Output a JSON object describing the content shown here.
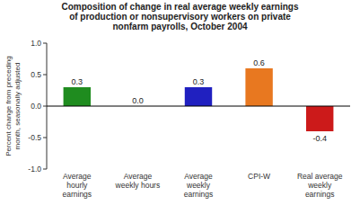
{
  "chart_data": {
    "type": "bar",
    "title": "Composition of change in real average weekly earnings\nof production or nonsupervisory workers on private\nnonfarm payrolls, October 2004",
    "categories": [
      "Average\nhourly\nearnings",
      "Average\nweekly hours",
      "Average\nweekly\nearnings",
      "CPI-W",
      "Real average\nweekly\nearnings"
    ],
    "values": [
      0.3,
      0.0,
      0.3,
      0.6,
      -0.4
    ],
    "value_labels": [
      "0.3",
      "0.0",
      "0.3",
      "0.6",
      "-0.4"
    ],
    "colors": [
      "#1f8c1f",
      "#2020c0",
      "#2020c0",
      "#e87820",
      "#cc1a1a"
    ],
    "ylim": [
      -1.0,
      1.0
    ],
    "yticks": [
      {
        "value": -1.0,
        "label": "-1.0"
      },
      -0.5,
      {
        "value": 0.0,
        "label": "0.0"
      },
      0.5,
      {
        "value": 1.0,
        "label": "1.0"
      }
    ],
    "ylabel": "Percent change from preceding\nmonth, seasonally adjusted",
    "grid": false,
    "data_labels": true
  }
}
